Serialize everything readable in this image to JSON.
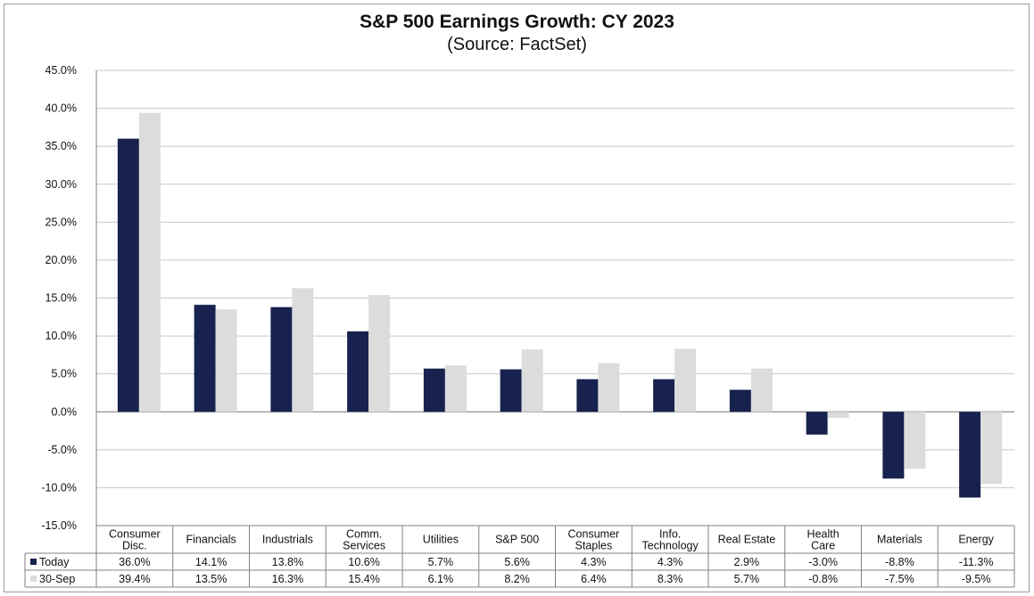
{
  "chart_data": {
    "type": "bar",
    "title": "S&P 500 Earnings Growth:  CY 2023",
    "subtitle": "(Source: FactSet)",
    "xlabel": "",
    "ylabel": "",
    "ylim": [
      -15,
      45
    ],
    "ytick_step": 5,
    "ytick_labels": [
      "45.0%",
      "40.0%",
      "35.0%",
      "30.0%",
      "25.0%",
      "20.0%",
      "15.0%",
      "10.0%",
      "5.0%",
      "0.0%",
      "-5.0%",
      "-10.0%",
      "-15.0%"
    ],
    "grid": true,
    "categories": [
      [
        "Consumer",
        "Disc."
      ],
      [
        "Financials"
      ],
      [
        "Industrials"
      ],
      [
        "Comm.",
        "Services"
      ],
      [
        "Utilities"
      ],
      [
        "S&P 500"
      ],
      [
        "Consumer",
        "Staples"
      ],
      [
        "Info.",
        "Technology"
      ],
      [
        "Real Estate"
      ],
      [
        "Health",
        "Care"
      ],
      [
        "Materials"
      ],
      [
        "Energy"
      ]
    ],
    "series": [
      {
        "name": "Today",
        "color": "#17224f",
        "values": [
          36.0,
          14.1,
          13.8,
          10.6,
          5.7,
          5.6,
          4.3,
          4.3,
          2.9,
          -3.0,
          -8.8,
          -11.3
        ],
        "labels": [
          "36.0%",
          "14.1%",
          "13.8%",
          "10.6%",
          "5.7%",
          "5.6%",
          "4.3%",
          "4.3%",
          "2.9%",
          "-3.0%",
          "-8.8%",
          "-11.3%"
        ]
      },
      {
        "name": "30-Sep",
        "color": "#dcdcdc",
        "values": [
          39.4,
          13.5,
          16.3,
          15.4,
          6.1,
          8.2,
          6.4,
          8.3,
          5.7,
          -0.8,
          -7.5,
          -9.5
        ],
        "labels": [
          "39.4%",
          "13.5%",
          "16.3%",
          "15.4%",
          "6.1%",
          "8.2%",
          "6.4%",
          "8.3%",
          "5.7%",
          "-0.8%",
          "-7.5%",
          "-9.5%"
        ]
      }
    ]
  },
  "colors": {
    "grid": "#c8c8c8",
    "axis": "#808080"
  }
}
